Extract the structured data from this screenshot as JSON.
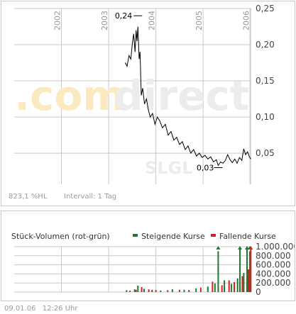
{
  "watermark": {
    "brand_part1": ".com",
    "brand_part2": "direct",
    "symbol": "SLGL"
  },
  "price_footer": {
    "change": "823,1 %HL",
    "interval": "Intervall: 1 Tag"
  },
  "volume_header": {
    "title": "Stück-Volumen (rot-grün)",
    "legend_up": "Steigende Kurse",
    "legend_down": "Fallende Kurse"
  },
  "footer": {
    "date": "09.01.06",
    "time": "12:26 Uhr"
  },
  "colors": {
    "price_line": "#000000",
    "grid": "#c8c8c8",
    "up": "#1e7a2e",
    "down": "#d42020",
    "highlight": "#f5dfb0",
    "watermark_orange": "#fbe9c0",
    "watermark_gray": "#ececec"
  },
  "chart_data": [
    {
      "type": "line",
      "title": "",
      "x_ticks": [
        "2002",
        "2003",
        "2004",
        "2005",
        "2006"
      ],
      "y_ticks": [
        "0,25",
        "0,20",
        "0,15",
        "0,10",
        "0,05"
      ],
      "ylim": [
        0.007,
        0.25
      ],
      "xlim": [
        2001.0,
        2006.02
      ],
      "annotations": [
        {
          "label": "0,24",
          "x": 2003.62,
          "y": 0.24
        },
        {
          "label": "0,03",
          "x": 2005.32,
          "y": 0.03
        }
      ],
      "series": [
        {
          "points": [
            [
              2003.35,
              0.175
            ],
            [
              2003.39,
              0.17
            ],
            [
              2003.43,
              0.185
            ],
            [
              2003.47,
              0.18
            ],
            [
              2003.5,
              0.2
            ],
            [
              2003.53,
              0.215
            ],
            [
              2003.56,
              0.19
            ],
            [
              2003.58,
              0.22
            ],
            [
              2003.6,
              0.205
            ],
            [
              2003.62,
              0.225
            ],
            [
              2003.645,
              0.18
            ],
            [
              2003.665,
              0.19
            ],
            [
              2003.69,
              0.13
            ],
            [
              2003.72,
              0.14
            ],
            [
              2003.76,
              0.118
            ],
            [
              2003.8,
              0.125
            ],
            [
              2003.84,
              0.11
            ],
            [
              2003.88,
              0.1
            ],
            [
              2003.93,
              0.105
            ],
            [
              2003.98,
              0.09
            ],
            [
              2004.03,
              0.1
            ],
            [
              2004.08,
              0.095
            ],
            [
              2004.14,
              0.085
            ],
            [
              2004.2,
              0.09
            ],
            [
              2004.26,
              0.075
            ],
            [
              2004.32,
              0.08
            ],
            [
              2004.38,
              0.068
            ],
            [
              2004.44,
              0.072
            ],
            [
              2004.5,
              0.062
            ],
            [
              2004.56,
              0.066
            ],
            [
              2004.62,
              0.055
            ],
            [
              2004.68,
              0.06
            ],
            [
              2004.74,
              0.05
            ],
            [
              2004.8,
              0.055
            ],
            [
              2004.86,
              0.046
            ],
            [
              2004.92,
              0.05
            ],
            [
              2004.98,
              0.044
            ],
            [
              2005.04,
              0.047
            ],
            [
              2005.1,
              0.042
            ],
            [
              2005.16,
              0.045
            ],
            [
              2005.22,
              0.038
            ],
            [
              2005.28,
              0.041
            ],
            [
              2005.32,
              0.033
            ],
            [
              2005.37,
              0.038
            ],
            [
              2005.42,
              0.036
            ],
            [
              2005.47,
              0.04
            ],
            [
              2005.52,
              0.048
            ],
            [
              2005.57,
              0.041
            ],
            [
              2005.62,
              0.037
            ],
            [
              2005.67,
              0.042
            ],
            [
              2005.72,
              0.036
            ],
            [
              2005.77,
              0.044
            ],
            [
              2005.82,
              0.04
            ],
            [
              2005.86,
              0.056
            ],
            [
              2005.9,
              0.048
            ],
            [
              2005.94,
              0.052
            ],
            [
              2005.98,
              0.045
            ],
            [
              2006.01,
              0.042
            ]
          ]
        }
      ]
    },
    {
      "type": "bar",
      "title": "Stück-Volumen (rot-grün)",
      "y_ticks": [
        "1.000.000",
        "800.000",
        "600.000",
        "400.000",
        "200.000",
        "0"
      ],
      "ylim": [
        0,
        1000000
      ],
      "xlim": [
        2001.0,
        2006.02
      ],
      "series": [
        {
          "name": "Steigende Kurse",
          "bars": [
            [
              2003.38,
              40000
            ],
            [
              2003.55,
              60000
            ],
            [
              2003.62,
              140000
            ],
            [
              2003.75,
              70000
            ],
            [
              2003.92,
              50000
            ],
            [
              2004.1,
              35000
            ],
            [
              2004.35,
              60000
            ],
            [
              2004.6,
              50000
            ],
            [
              2004.85,
              80000
            ],
            [
              2005.1,
              120000
            ],
            [
              2005.25,
              190000
            ],
            [
              2005.32,
              900000
            ],
            [
              2005.45,
              260000
            ],
            [
              2005.6,
              180000
            ],
            [
              2005.73,
              300000
            ],
            [
              2005.78,
              950000
            ],
            [
              2005.86,
              420000
            ],
            [
              2005.93,
              950000
            ],
            [
              2005.99,
              900000
            ]
          ]
        },
        {
          "name": "Fallende Kurse",
          "bars": [
            [
              2003.45,
              30000
            ],
            [
              2003.58,
              50000
            ],
            [
              2003.7,
              110000
            ],
            [
              2003.85,
              60000
            ],
            [
              2004.0,
              45000
            ],
            [
              2004.25,
              40000
            ],
            [
              2004.5,
              50000
            ],
            [
              2004.7,
              45000
            ],
            [
              2004.95,
              100000
            ],
            [
              2005.2,
              230000
            ],
            [
              2005.4,
              150000
            ],
            [
              2005.55,
              260000
            ],
            [
              2005.66,
              220000
            ],
            [
              2005.83,
              350000
            ],
            [
              2005.96,
              500000
            ],
            [
              2006.01,
              950000
            ]
          ]
        }
      ]
    }
  ]
}
